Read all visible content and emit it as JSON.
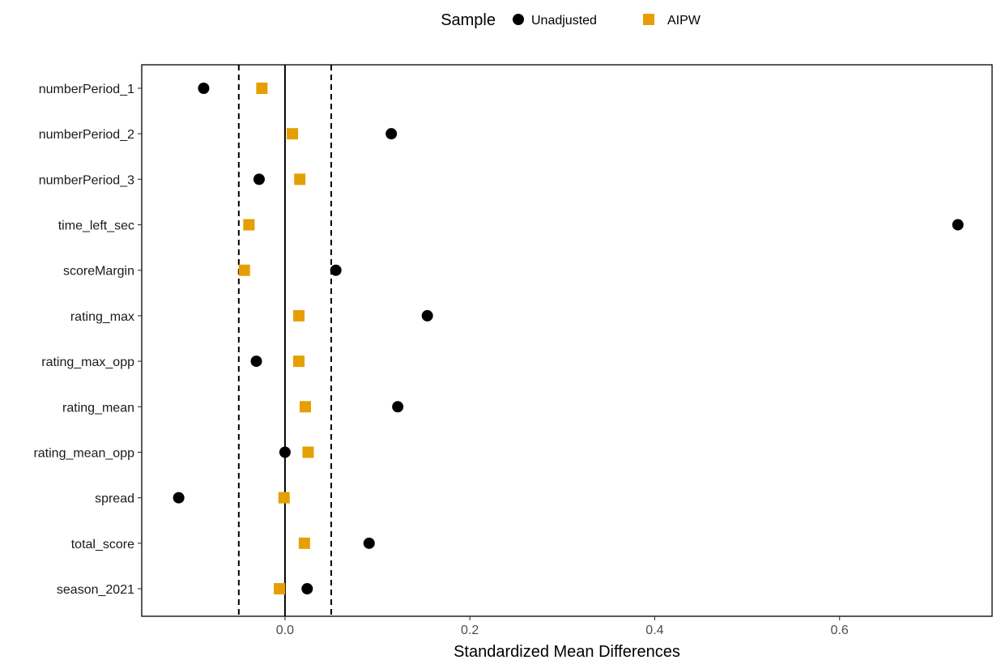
{
  "chart_data": {
    "type": "scatter",
    "title": "",
    "xlabel": "Standardized Mean Differences",
    "ylabel": "",
    "xlim": [
      -0.155,
      0.765
    ],
    "x_ticks": [
      0.0,
      0.2,
      0.4,
      0.6
    ],
    "x_tick_labels": [
      "0.0",
      "0.2",
      "0.4",
      "0.6"
    ],
    "reference_lines": {
      "solid": 0.0,
      "dashed": [
        -0.05,
        0.05
      ]
    },
    "grid": false,
    "legend": {
      "title": "Sample",
      "position": "top"
    },
    "categories": [
      "numberPeriod_1",
      "numberPeriod_2",
      "numberPeriod_3",
      "time_left_sec",
      "scoreMargin",
      "rating_max",
      "rating_max_opp",
      "rating_mean",
      "rating_mean_opp",
      "spread",
      "total_score",
      "season_2021"
    ],
    "series": [
      {
        "name": "Unadjusted",
        "marker": "circle",
        "color": "#000000",
        "values": [
          -0.088,
          0.115,
          -0.028,
          0.728,
          0.055,
          0.154,
          -0.031,
          0.122,
          0.0,
          -0.115,
          0.091,
          0.024
        ]
      },
      {
        "name": "AIPW",
        "marker": "square",
        "color": "#E69F00",
        "values": [
          -0.025,
          0.008,
          0.016,
          -0.039,
          -0.044,
          0.015,
          0.015,
          0.022,
          0.025,
          -0.001,
          0.021,
          -0.006
        ]
      }
    ]
  }
}
